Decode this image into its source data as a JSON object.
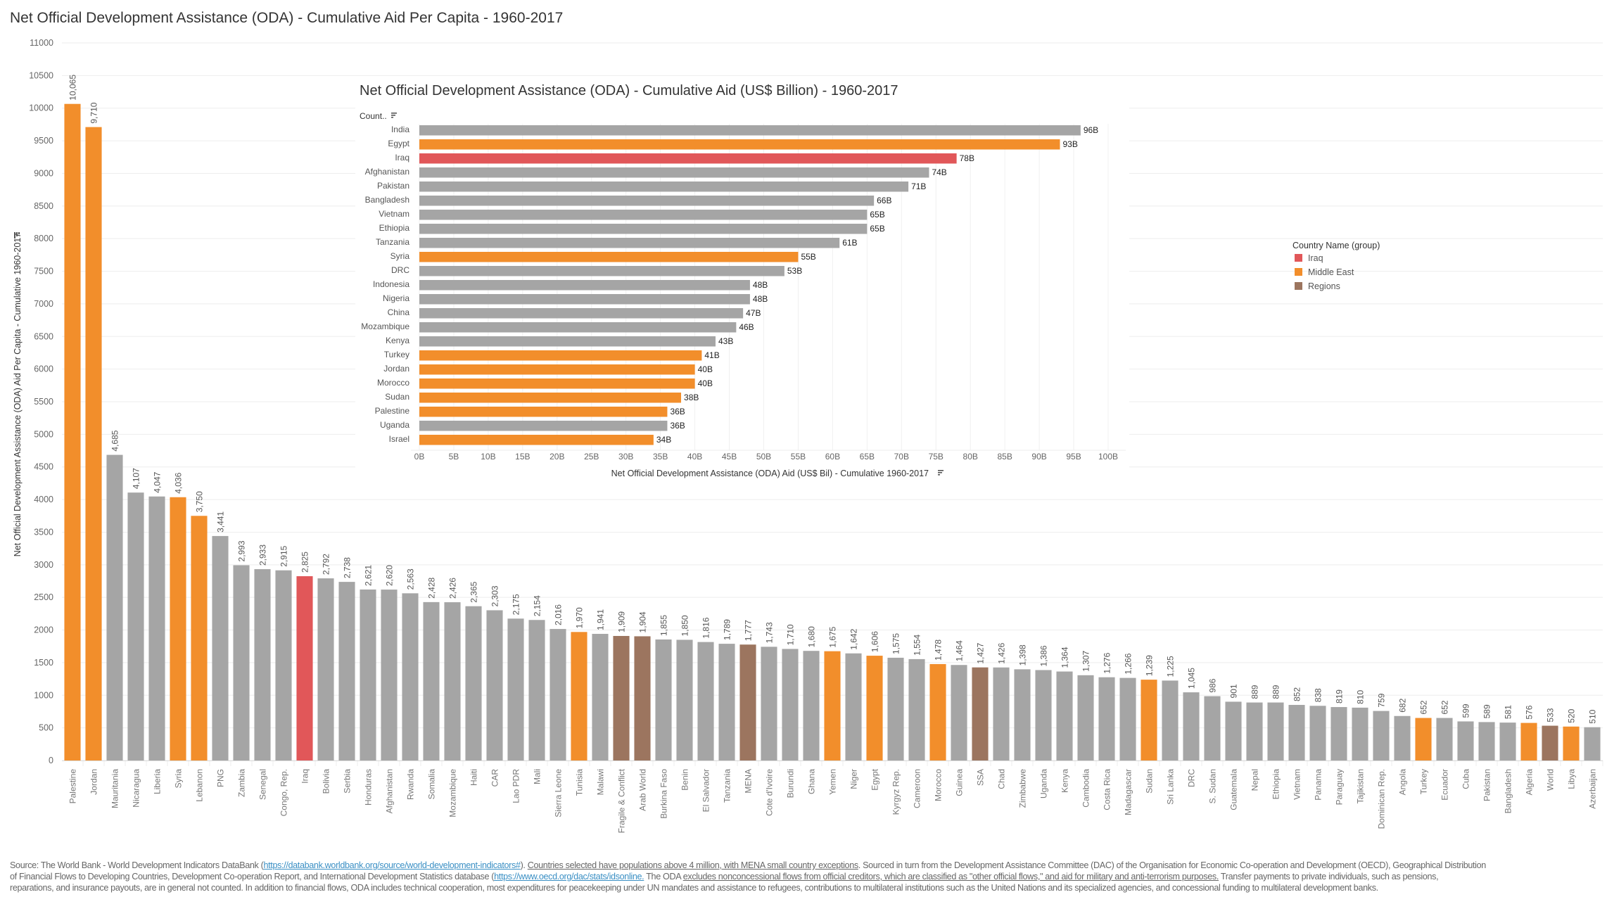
{
  "title": "Net Official Development Assistance (ODA) - Cumulative Aid Per Capita - 1960-2017",
  "colors": {
    "Iraq": "#E15759",
    "Middle East": "#F28E2B",
    "Regions": "#9C755F",
    "Other": "#A5A5A5"
  },
  "legend": {
    "title": "Country Name (group)",
    "items": [
      {
        "label": "Iraq",
        "group": "Iraq"
      },
      {
        "label": "Middle East",
        "group": "Middle East"
      },
      {
        "label": "Regions",
        "group": "Regions"
      }
    ]
  },
  "chart_data": [
    {
      "type": "bar",
      "orientation": "vertical",
      "title": "Net Official Development Assistance (ODA) - Cumulative Aid Per Capita - 1960-2017",
      "ylabel": "Net Official Development Assistance (ODA) Aid Per Capita - Cumulative 1960-2017",
      "ylim": [
        0,
        11000
      ],
      "yticks": [
        0,
        500,
        1000,
        1500,
        2000,
        2500,
        3000,
        3500,
        4000,
        4500,
        5000,
        5500,
        6000,
        6500,
        7000,
        7500,
        8000,
        8500,
        9000,
        9500,
        10000,
        10500,
        11000
      ],
      "grid": true,
      "categories": [
        "Palestine",
        "Jordan",
        "Mauritania",
        "Nicaragua",
        "Liberia",
        "Syria",
        "Lebanon",
        "PNG",
        "Zambia",
        "Senegal",
        "Congo, Rep.",
        "Iraq",
        "Bolivia",
        "Serbia",
        "Honduras",
        "Afghanistan",
        "Rwanda",
        "Somalia",
        "Mozambique",
        "Haiti",
        "CAR",
        "Lao PDR",
        "Mali",
        "Sierra Leone",
        "Tunisia",
        "Malawi",
        "Fragile & Conflict",
        "Arab World",
        "Burkina Faso",
        "Benin",
        "El Salvador",
        "Tanzania",
        "MENA",
        "Cote d'Ivoire",
        "Burundi",
        "Ghana",
        "Yemen",
        "Niger",
        "Egypt",
        "Kyrgyz Rep.",
        "Cameroon",
        "Morocco",
        "Guinea",
        "SSA",
        "Chad",
        "Zimbabwe",
        "Uganda",
        "Kenya",
        "Cambodia",
        "Costa Rica",
        "Madagascar",
        "Sudan",
        "Sri Lanka",
        "DRC",
        "S. Sudan",
        "Guatemala",
        "Nepal",
        "Ethiopia",
        "Vietnam",
        "Panama",
        "Paraguay",
        "Tajikistan",
        "Dominican Rep.",
        "Angola",
        "Turkey",
        "Ecuador",
        "Cuba",
        "Pakistan",
        "Bangladesh",
        "Algeria",
        "World",
        "Libya",
        "Azerbaijan"
      ],
      "values": [
        10065,
        9710,
        4685,
        4107,
        4047,
        4036,
        3750,
        3441,
        2993,
        2933,
        2915,
        2825,
        2792,
        2738,
        2621,
        2620,
        2563,
        2428,
        2426,
        2365,
        2303,
        2175,
        2154,
        2016,
        1970,
        1941,
        1909,
        1904,
        1855,
        1850,
        1816,
        1789,
        1777,
        1743,
        1710,
        1680,
        1675,
        1642,
        1606,
        1575,
        1554,
        1478,
        1464,
        1427,
        1426,
        1398,
        1386,
        1364,
        1307,
        1276,
        1266,
        1239,
        1225,
        1045,
        986,
        901,
        889,
        889,
        852,
        838,
        819,
        810,
        759,
        682,
        652,
        652,
        599,
        589,
        581,
        576,
        533,
        520,
        510
      ],
      "groups": [
        "Middle East",
        "Middle East",
        "Other",
        "Other",
        "Other",
        "Middle East",
        "Middle East",
        "Other",
        "Other",
        "Other",
        "Other",
        "Iraq",
        "Other",
        "Other",
        "Other",
        "Other",
        "Other",
        "Other",
        "Other",
        "Other",
        "Other",
        "Other",
        "Other",
        "Other",
        "Middle East",
        "Other",
        "Regions",
        "Regions",
        "Other",
        "Other",
        "Other",
        "Other",
        "Regions",
        "Other",
        "Other",
        "Other",
        "Middle East",
        "Other",
        "Middle East",
        "Other",
        "Other",
        "Middle East",
        "Other",
        "Regions",
        "Other",
        "Other",
        "Other",
        "Other",
        "Other",
        "Other",
        "Other",
        "Middle East",
        "Other",
        "Other",
        "Other",
        "Other",
        "Other",
        "Other",
        "Other",
        "Other",
        "Other",
        "Other",
        "Other",
        "Other",
        "Middle East",
        "Other",
        "Other",
        "Other",
        "Other",
        "Middle East",
        "Regions",
        "Middle East",
        "Other"
      ]
    },
    {
      "type": "bar",
      "orientation": "horizontal",
      "title": "Net Official Development Assistance (ODA) - Cumulative Aid (US$ Billion) - 1960-2017",
      "ylabel": "Count..",
      "xlabel": "Net Official Development Assistance (ODA) Aid (US$ Bil) - Cumulative 1960-2017",
      "xlim": [
        0,
        100
      ],
      "xticks": [
        "0B",
        "5B",
        "10B",
        "15B",
        "20B",
        "25B",
        "30B",
        "35B",
        "40B",
        "45B",
        "50B",
        "55B",
        "60B",
        "65B",
        "70B",
        "75B",
        "80B",
        "85B",
        "90B",
        "95B",
        "100B"
      ],
      "grid": true,
      "unit_suffix": "B",
      "categories": [
        "India",
        "Egypt",
        "Iraq",
        "Afghanistan",
        "Pakistan",
        "Bangladesh",
        "Vietnam",
        "Ethiopia",
        "Tanzania",
        "Syria",
        "DRC",
        "Indonesia",
        "Nigeria",
        "China",
        "Mozambique",
        "Kenya",
        "Turkey",
        "Jordan",
        "Morocco",
        "Sudan",
        "Palestine",
        "Uganda",
        "Israel"
      ],
      "values": [
        96,
        93,
        78,
        74,
        71,
        66,
        65,
        65,
        61,
        55,
        53,
        48,
        48,
        47,
        46,
        43,
        41,
        40,
        40,
        38,
        36,
        36,
        34
      ],
      "groups": [
        "Other",
        "Middle East",
        "Iraq",
        "Other",
        "Other",
        "Other",
        "Other",
        "Other",
        "Other",
        "Middle East",
        "Other",
        "Other",
        "Other",
        "Other",
        "Other",
        "Other",
        "Middle East",
        "Middle East",
        "Middle East",
        "Middle East",
        "Middle East",
        "Other",
        "Middle East"
      ]
    }
  ],
  "footer": {
    "lines": [
      [
        {
          "t": "Source: The World Bank - World Development Indicators DataBank (",
          "s": ""
        },
        {
          "t": "https://databank.worldbank.org/source/world-development-indicators#",
          "s": "link"
        },
        {
          "t": "). ",
          "s": ""
        },
        {
          "t": "Countries selected have populations above 4 million, with MENA small country exceptions",
          "s": "ul"
        },
        {
          "t": ". Sourced in turn from the Development Assistance Committee (DAC) of the Organisation for Economic Co-operation and Development (OECD), Geographical Distribution",
          "s": ""
        }
      ],
      [
        {
          "t": "of Financial Flows to Developing Countries, Development Co-operation Report, and International Development Statistics database (",
          "s": ""
        },
        {
          "t": "https://www.oecd.org/dac/stats/idsonline.",
          "s": "link"
        },
        {
          "t": " The ODA ",
          "s": ""
        },
        {
          "t": "excludes nonconcessional flows from official creditors, which are classified as \"other official flows,\" and aid for military and anti-terrorism purposes.",
          "s": "ul"
        },
        {
          "t": " Transfer payments to private individuals, such as pensions,",
          "s": ""
        }
      ],
      [
        {
          "t": "reparations, and insurance payouts, are in general not counted. In addition to financial flows, ODA includes technical cooperation, most expenditures for peacekeeping under UN mandates and assistance to refugees, contributions to multilateral institutions such as the United Nations and its specialized agencies, and concessional funding to multilateral development banks.",
          "s": ""
        }
      ]
    ]
  }
}
